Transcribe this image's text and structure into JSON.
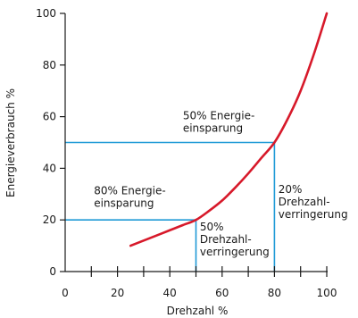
{
  "chart_data": {
    "type": "line",
    "title": "",
    "xlabel": "Drehzahl %",
    "ylabel": "Energieverbrauch %",
    "xlim": [
      0,
      100
    ],
    "ylim": [
      0,
      100
    ],
    "xticks": [
      0,
      20,
      40,
      60,
      80,
      100
    ],
    "xminor_step": 10,
    "yticks": [
      0,
      20,
      40,
      60,
      80,
      100
    ],
    "grid": false,
    "legend": "none",
    "colors": {
      "curve": "#d7192a",
      "guide": "#1f9ad6",
      "axis": "#1a1a1a"
    },
    "series": [
      {
        "x": [
          25,
          30,
          35,
          40,
          45,
          50,
          55,
          60,
          65,
          70,
          75,
          80,
          85,
          90,
          95,
          100
        ],
        "y": [
          10,
          12,
          14,
          16,
          18,
          20,
          23.5,
          27.5,
          32.5,
          38,
          44,
          50,
          59,
          70,
          84,
          100
        ]
      }
    ],
    "guides": [
      {
        "x": 50,
        "y": 20
      },
      {
        "x": 80,
        "y": 50
      }
    ],
    "annotations": [
      {
        "id": "a1",
        "lines": [
          "50% Energie-",
          "einsparung"
        ],
        "x": 45,
        "y": 59,
        "anchor": "start"
      },
      {
        "id": "a2",
        "lines": [
          "80% Energie-",
          "einsparung"
        ],
        "x": 11,
        "y": 30,
        "anchor": "start"
      },
      {
        "id": "a3",
        "lines": [
          "20%",
          "Drehzahl-",
          "verringerung"
        ],
        "x": 81.5,
        "y": 30.5,
        "anchor": "start"
      },
      {
        "id": "a4",
        "lines": [
          "50%",
          "Drehzahl-",
          "verringerung"
        ],
        "x": 51.5,
        "y": 16,
        "anchor": "start"
      }
    ]
  }
}
